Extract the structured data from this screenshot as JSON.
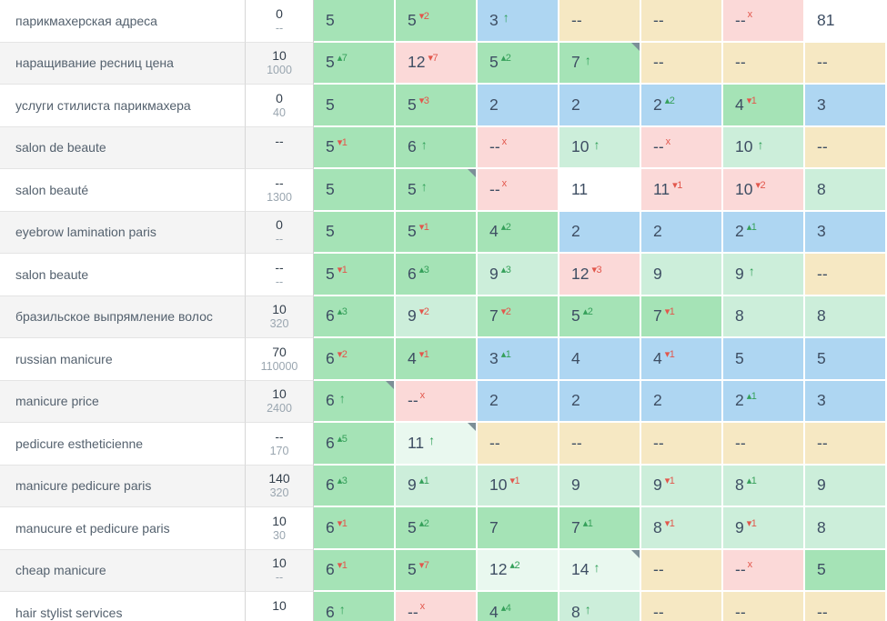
{
  "palette": {
    "green": "#a5e3b6",
    "lightgreen": "#cceeda",
    "palegreen": "#e9f8ef",
    "blue": "#aed6f2",
    "pink": "#fbd9d8",
    "tan": "#f6e8c3",
    "white": "#ffffff",
    "stripe": "#f4f4f4",
    "change_up_color": "#35a05a",
    "change_down_color": "#e2574c",
    "corner_marker_color": "#7c8f97"
  },
  "glyphs": {
    "up_triangle": "▴",
    "down_triangle": "▾",
    "new_arrow": "↑",
    "dropped_mark": "x"
  },
  "rows": [
    {
      "keyword": "парикмахерская адреса",
      "volume_top": "0",
      "volume_bottom": "--",
      "cells": [
        {
          "v": "5",
          "bg": "green"
        },
        {
          "v": "5",
          "chg": "-2",
          "bg": "green"
        },
        {
          "v": "3",
          "chg": "up",
          "bg": "blue"
        },
        {
          "v": "--",
          "bg": "tan"
        },
        {
          "v": "--",
          "bg": "tan"
        },
        {
          "v": "--",
          "chg": "x",
          "bg": "pink"
        },
        {
          "v": "81",
          "bg": "white"
        }
      ]
    },
    {
      "keyword": "наращивание ресниц цена",
      "volume_top": "10",
      "volume_bottom": "1000",
      "cells": [
        {
          "v": "5",
          "chg": "+7",
          "bg": "green"
        },
        {
          "v": "12",
          "chg": "-7",
          "bg": "pink"
        },
        {
          "v": "5",
          "chg": "+2",
          "bg": "green"
        },
        {
          "v": "7",
          "chg": "up",
          "bg": "green",
          "corner": true
        },
        {
          "v": "--",
          "bg": "tan"
        },
        {
          "v": "--",
          "bg": "tan"
        },
        {
          "v": "--",
          "bg": "tan"
        }
      ]
    },
    {
      "keyword": "услуги стилиста парикмахера",
      "volume_top": "0",
      "volume_bottom": "40",
      "cells": [
        {
          "v": "5",
          "bg": "green"
        },
        {
          "v": "5",
          "chg": "-3",
          "bg": "green"
        },
        {
          "v": "2",
          "bg": "blue"
        },
        {
          "v": "2",
          "bg": "blue"
        },
        {
          "v": "2",
          "chg": "+2",
          "bg": "blue"
        },
        {
          "v": "4",
          "chg": "-1",
          "bg": "green"
        },
        {
          "v": "3",
          "bg": "blue"
        }
      ]
    },
    {
      "keyword": "salon de beaute",
      "volume_top": "--",
      "volume_bottom": "",
      "cells": [
        {
          "v": "5",
          "chg": "-1",
          "bg": "green"
        },
        {
          "v": "6",
          "chg": "up",
          "bg": "green"
        },
        {
          "v": "--",
          "chg": "x",
          "bg": "pink"
        },
        {
          "v": "10",
          "chg": "up",
          "bg": "lightgreen"
        },
        {
          "v": "--",
          "chg": "x",
          "bg": "pink"
        },
        {
          "v": "10",
          "chg": "up",
          "bg": "lightgreen"
        },
        {
          "v": "--",
          "bg": "tan"
        }
      ]
    },
    {
      "keyword": "salon beauté",
      "volume_top": "--",
      "volume_bottom": "1300",
      "cells": [
        {
          "v": "5",
          "bg": "green"
        },
        {
          "v": "5",
          "chg": "up",
          "bg": "green",
          "corner": true
        },
        {
          "v": "--",
          "chg": "x",
          "bg": "pink"
        },
        {
          "v": "11",
          "bg": "white"
        },
        {
          "v": "11",
          "chg": "-1",
          "bg": "pink"
        },
        {
          "v": "10",
          "chg": "-2",
          "bg": "pink"
        },
        {
          "v": "8",
          "bg": "lightgreen"
        }
      ]
    },
    {
      "keyword": "eyebrow lamination paris",
      "volume_top": "0",
      "volume_bottom": "--",
      "cells": [
        {
          "v": "5",
          "bg": "green"
        },
        {
          "v": "5",
          "chg": "-1",
          "bg": "green"
        },
        {
          "v": "4",
          "chg": "+2",
          "bg": "green"
        },
        {
          "v": "2",
          "bg": "blue"
        },
        {
          "v": "2",
          "bg": "blue"
        },
        {
          "v": "2",
          "chg": "+1",
          "bg": "blue"
        },
        {
          "v": "3",
          "bg": "blue"
        }
      ]
    },
    {
      "keyword": "salon beaute",
      "volume_top": "--",
      "volume_bottom": "--",
      "cells": [
        {
          "v": "5",
          "chg": "-1",
          "bg": "green"
        },
        {
          "v": "6",
          "chg": "+3",
          "bg": "green"
        },
        {
          "v": "9",
          "chg": "+3",
          "bg": "lightgreen"
        },
        {
          "v": "12",
          "chg": "-3",
          "bg": "pink"
        },
        {
          "v": "9",
          "bg": "lightgreen"
        },
        {
          "v": "9",
          "chg": "up",
          "bg": "lightgreen"
        },
        {
          "v": "--",
          "bg": "tan"
        }
      ]
    },
    {
      "keyword": "бразильское выпрямление волос",
      "volume_top": "10",
      "volume_bottom": "320",
      "cells": [
        {
          "v": "6",
          "chg": "+3",
          "bg": "green"
        },
        {
          "v": "9",
          "chg": "-2",
          "bg": "lightgreen"
        },
        {
          "v": "7",
          "chg": "-2",
          "bg": "green"
        },
        {
          "v": "5",
          "chg": "+2",
          "bg": "green"
        },
        {
          "v": "7",
          "chg": "-1",
          "bg": "green"
        },
        {
          "v": "8",
          "bg": "lightgreen"
        },
        {
          "v": "8",
          "bg": "lightgreen"
        }
      ]
    },
    {
      "keyword": "russian manicure",
      "volume_top": "70",
      "volume_bottom": "110000",
      "cells": [
        {
          "v": "6",
          "chg": "-2",
          "bg": "green"
        },
        {
          "v": "4",
          "chg": "-1",
          "bg": "green"
        },
        {
          "v": "3",
          "chg": "+1",
          "bg": "blue"
        },
        {
          "v": "4",
          "bg": "blue"
        },
        {
          "v": "4",
          "chg": "-1",
          "bg": "blue"
        },
        {
          "v": "5",
          "bg": "blue"
        },
        {
          "v": "5",
          "bg": "blue"
        }
      ]
    },
    {
      "keyword": "manicure price",
      "volume_top": "10",
      "volume_bottom": "2400",
      "cells": [
        {
          "v": "6",
          "chg": "up",
          "bg": "green",
          "corner": true
        },
        {
          "v": "--",
          "chg": "x",
          "bg": "pink"
        },
        {
          "v": "2",
          "bg": "blue"
        },
        {
          "v": "2",
          "bg": "blue"
        },
        {
          "v": "2",
          "bg": "blue"
        },
        {
          "v": "2",
          "chg": "+1",
          "bg": "blue"
        },
        {
          "v": "3",
          "bg": "blue"
        }
      ]
    },
    {
      "keyword": "pedicure estheticienne",
      "volume_top": "--",
      "volume_bottom": "170",
      "cells": [
        {
          "v": "6",
          "chg": "+5",
          "bg": "green"
        },
        {
          "v": "11",
          "chg": "up",
          "bg": "palegreen",
          "corner": true
        },
        {
          "v": "--",
          "bg": "tan"
        },
        {
          "v": "--",
          "bg": "tan"
        },
        {
          "v": "--",
          "bg": "tan"
        },
        {
          "v": "--",
          "bg": "tan"
        },
        {
          "v": "--",
          "bg": "tan"
        }
      ]
    },
    {
      "keyword": "manicure pedicure paris",
      "volume_top": "140",
      "volume_bottom": "320",
      "cells": [
        {
          "v": "6",
          "chg": "+3",
          "bg": "green"
        },
        {
          "v": "9",
          "chg": "+1",
          "bg": "lightgreen"
        },
        {
          "v": "10",
          "chg": "-1",
          "bg": "lightgreen"
        },
        {
          "v": "9",
          "bg": "lightgreen"
        },
        {
          "v": "9",
          "chg": "-1",
          "bg": "lightgreen"
        },
        {
          "v": "8",
          "chg": "+1",
          "bg": "lightgreen"
        },
        {
          "v": "9",
          "bg": "lightgreen"
        }
      ]
    },
    {
      "keyword": "manucure et pedicure paris",
      "volume_top": "10",
      "volume_bottom": "30",
      "cells": [
        {
          "v": "6",
          "chg": "-1",
          "bg": "green"
        },
        {
          "v": "5",
          "chg": "+2",
          "bg": "green"
        },
        {
          "v": "7",
          "bg": "green"
        },
        {
          "v": "7",
          "chg": "+1",
          "bg": "green"
        },
        {
          "v": "8",
          "chg": "-1",
          "bg": "lightgreen"
        },
        {
          "v": "9",
          "chg": "-1",
          "bg": "lightgreen"
        },
        {
          "v": "8",
          "bg": "lightgreen"
        }
      ]
    },
    {
      "keyword": "cheap manicure",
      "volume_top": "10",
      "volume_bottom": "--",
      "cells": [
        {
          "v": "6",
          "chg": "-1",
          "bg": "green"
        },
        {
          "v": "5",
          "chg": "-7",
          "bg": "green"
        },
        {
          "v": "12",
          "chg": "+2",
          "bg": "palegreen"
        },
        {
          "v": "14",
          "chg": "up",
          "bg": "palegreen",
          "corner": true
        },
        {
          "v": "--",
          "bg": "tan"
        },
        {
          "v": "--",
          "chg": "x",
          "bg": "pink"
        },
        {
          "v": "5",
          "bg": "green"
        }
      ]
    },
    {
      "keyword": "hair stylist services",
      "volume_top": "10",
      "volume_bottom": "",
      "cells": [
        {
          "v": "6",
          "chg": "up",
          "bg": "green"
        },
        {
          "v": "--",
          "chg": "x",
          "bg": "pink"
        },
        {
          "v": "4",
          "chg": "+4",
          "bg": "green"
        },
        {
          "v": "8",
          "chg": "up",
          "bg": "lightgreen"
        },
        {
          "v": "--",
          "bg": "tan"
        },
        {
          "v": "--",
          "bg": "tan"
        },
        {
          "v": "--",
          "bg": "tan"
        }
      ]
    }
  ]
}
